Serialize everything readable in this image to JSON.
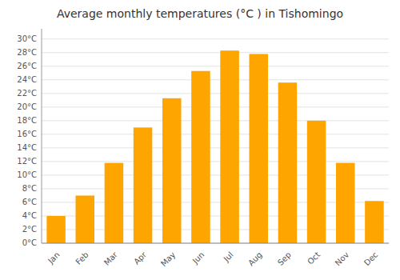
{
  "chart_data": {
    "type": "bar",
    "title": "Average monthly temperatures (°C ) in Tishomingo",
    "categories": [
      "Jan",
      "Feb",
      "Mar",
      "Apr",
      "May",
      "Jun",
      "Jul",
      "Aug",
      "Sep",
      "Oct",
      "Nov",
      "Dec"
    ],
    "values": [
      4,
      7,
      11.8,
      17,
      21.3,
      25.3,
      28.3,
      27.8,
      23.6,
      18,
      11.8,
      6.2
    ],
    "color": "#FFA500",
    "ylim": [
      0,
      31.5
    ],
    "yticks": [
      {
        "value": 0,
        "label": "0°C"
      },
      {
        "value": 2,
        "label": "2°C"
      },
      {
        "value": 4,
        "label": "4°C"
      },
      {
        "value": 6,
        "label": "6°C"
      },
      {
        "value": 8,
        "label": "8°C"
      },
      {
        "value": 10,
        "label": "10°C"
      },
      {
        "value": 12,
        "label": "12°C"
      },
      {
        "value": 14,
        "label": "14°C"
      },
      {
        "value": 16,
        "label": "16°C"
      },
      {
        "value": 18,
        "label": "18°C"
      },
      {
        "value": 20,
        "label": "20°C"
      },
      {
        "value": 22,
        "label": "22°C"
      },
      {
        "value": 24,
        "label": "24°C"
      },
      {
        "value": 26,
        "label": "26°C"
      },
      {
        "value": 28,
        "label": "28°C"
      },
      {
        "value": 30,
        "label": "30°C"
      }
    ],
    "grid": true
  }
}
